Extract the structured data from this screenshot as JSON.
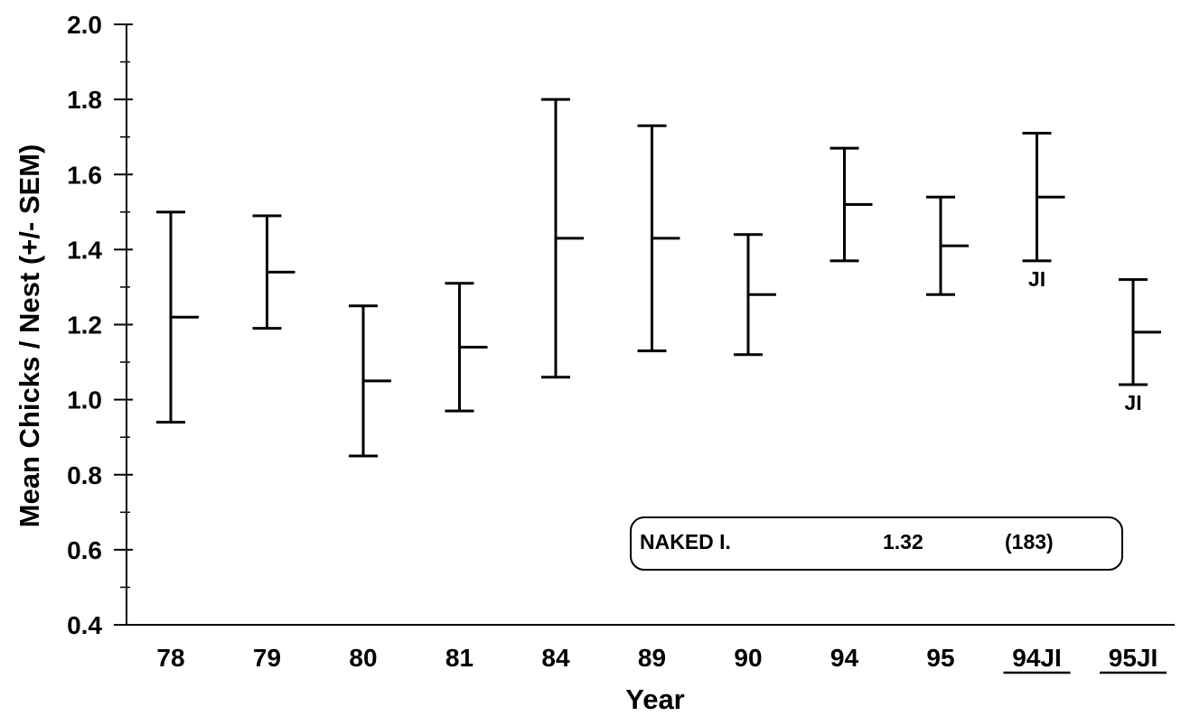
{
  "chart_data": {
    "type": "errorbar",
    "title": "",
    "xlabel": "Year",
    "ylabel": "Mean Chicks / Nest (+/- SEM)",
    "ylim": [
      0.4,
      2.0
    ],
    "yticks": [
      "0.4",
      "0.6",
      "0.8",
      "1.0",
      "1.2",
      "1.4",
      "1.6",
      "1.8",
      "2.0"
    ],
    "categories": [
      "78",
      "79",
      "80",
      "81",
      "84",
      "89",
      "90",
      "94",
      "95",
      "94JI",
      "95JI"
    ],
    "underlined_categories": [
      "94JI",
      "95JI"
    ],
    "mean": [
      1.22,
      1.34,
      1.05,
      1.14,
      1.43,
      1.43,
      1.28,
      1.52,
      1.41,
      1.54,
      1.18
    ],
    "upper": [
      1.5,
      1.49,
      1.25,
      1.31,
      1.8,
      1.73,
      1.44,
      1.67,
      1.54,
      1.71,
      1.32
    ],
    "lower": [
      0.94,
      1.19,
      0.85,
      0.97,
      1.06,
      1.13,
      1.12,
      1.37,
      1.28,
      1.37,
      1.04
    ],
    "annotations": [
      {
        "category": "94JI",
        "text": "JI"
      },
      {
        "category": "95JI",
        "text": "JI"
      }
    ],
    "legend": {
      "position": "bottom-right",
      "site": "NAKED I.",
      "value": "1.32",
      "count": "(183)"
    },
    "grid": false
  }
}
